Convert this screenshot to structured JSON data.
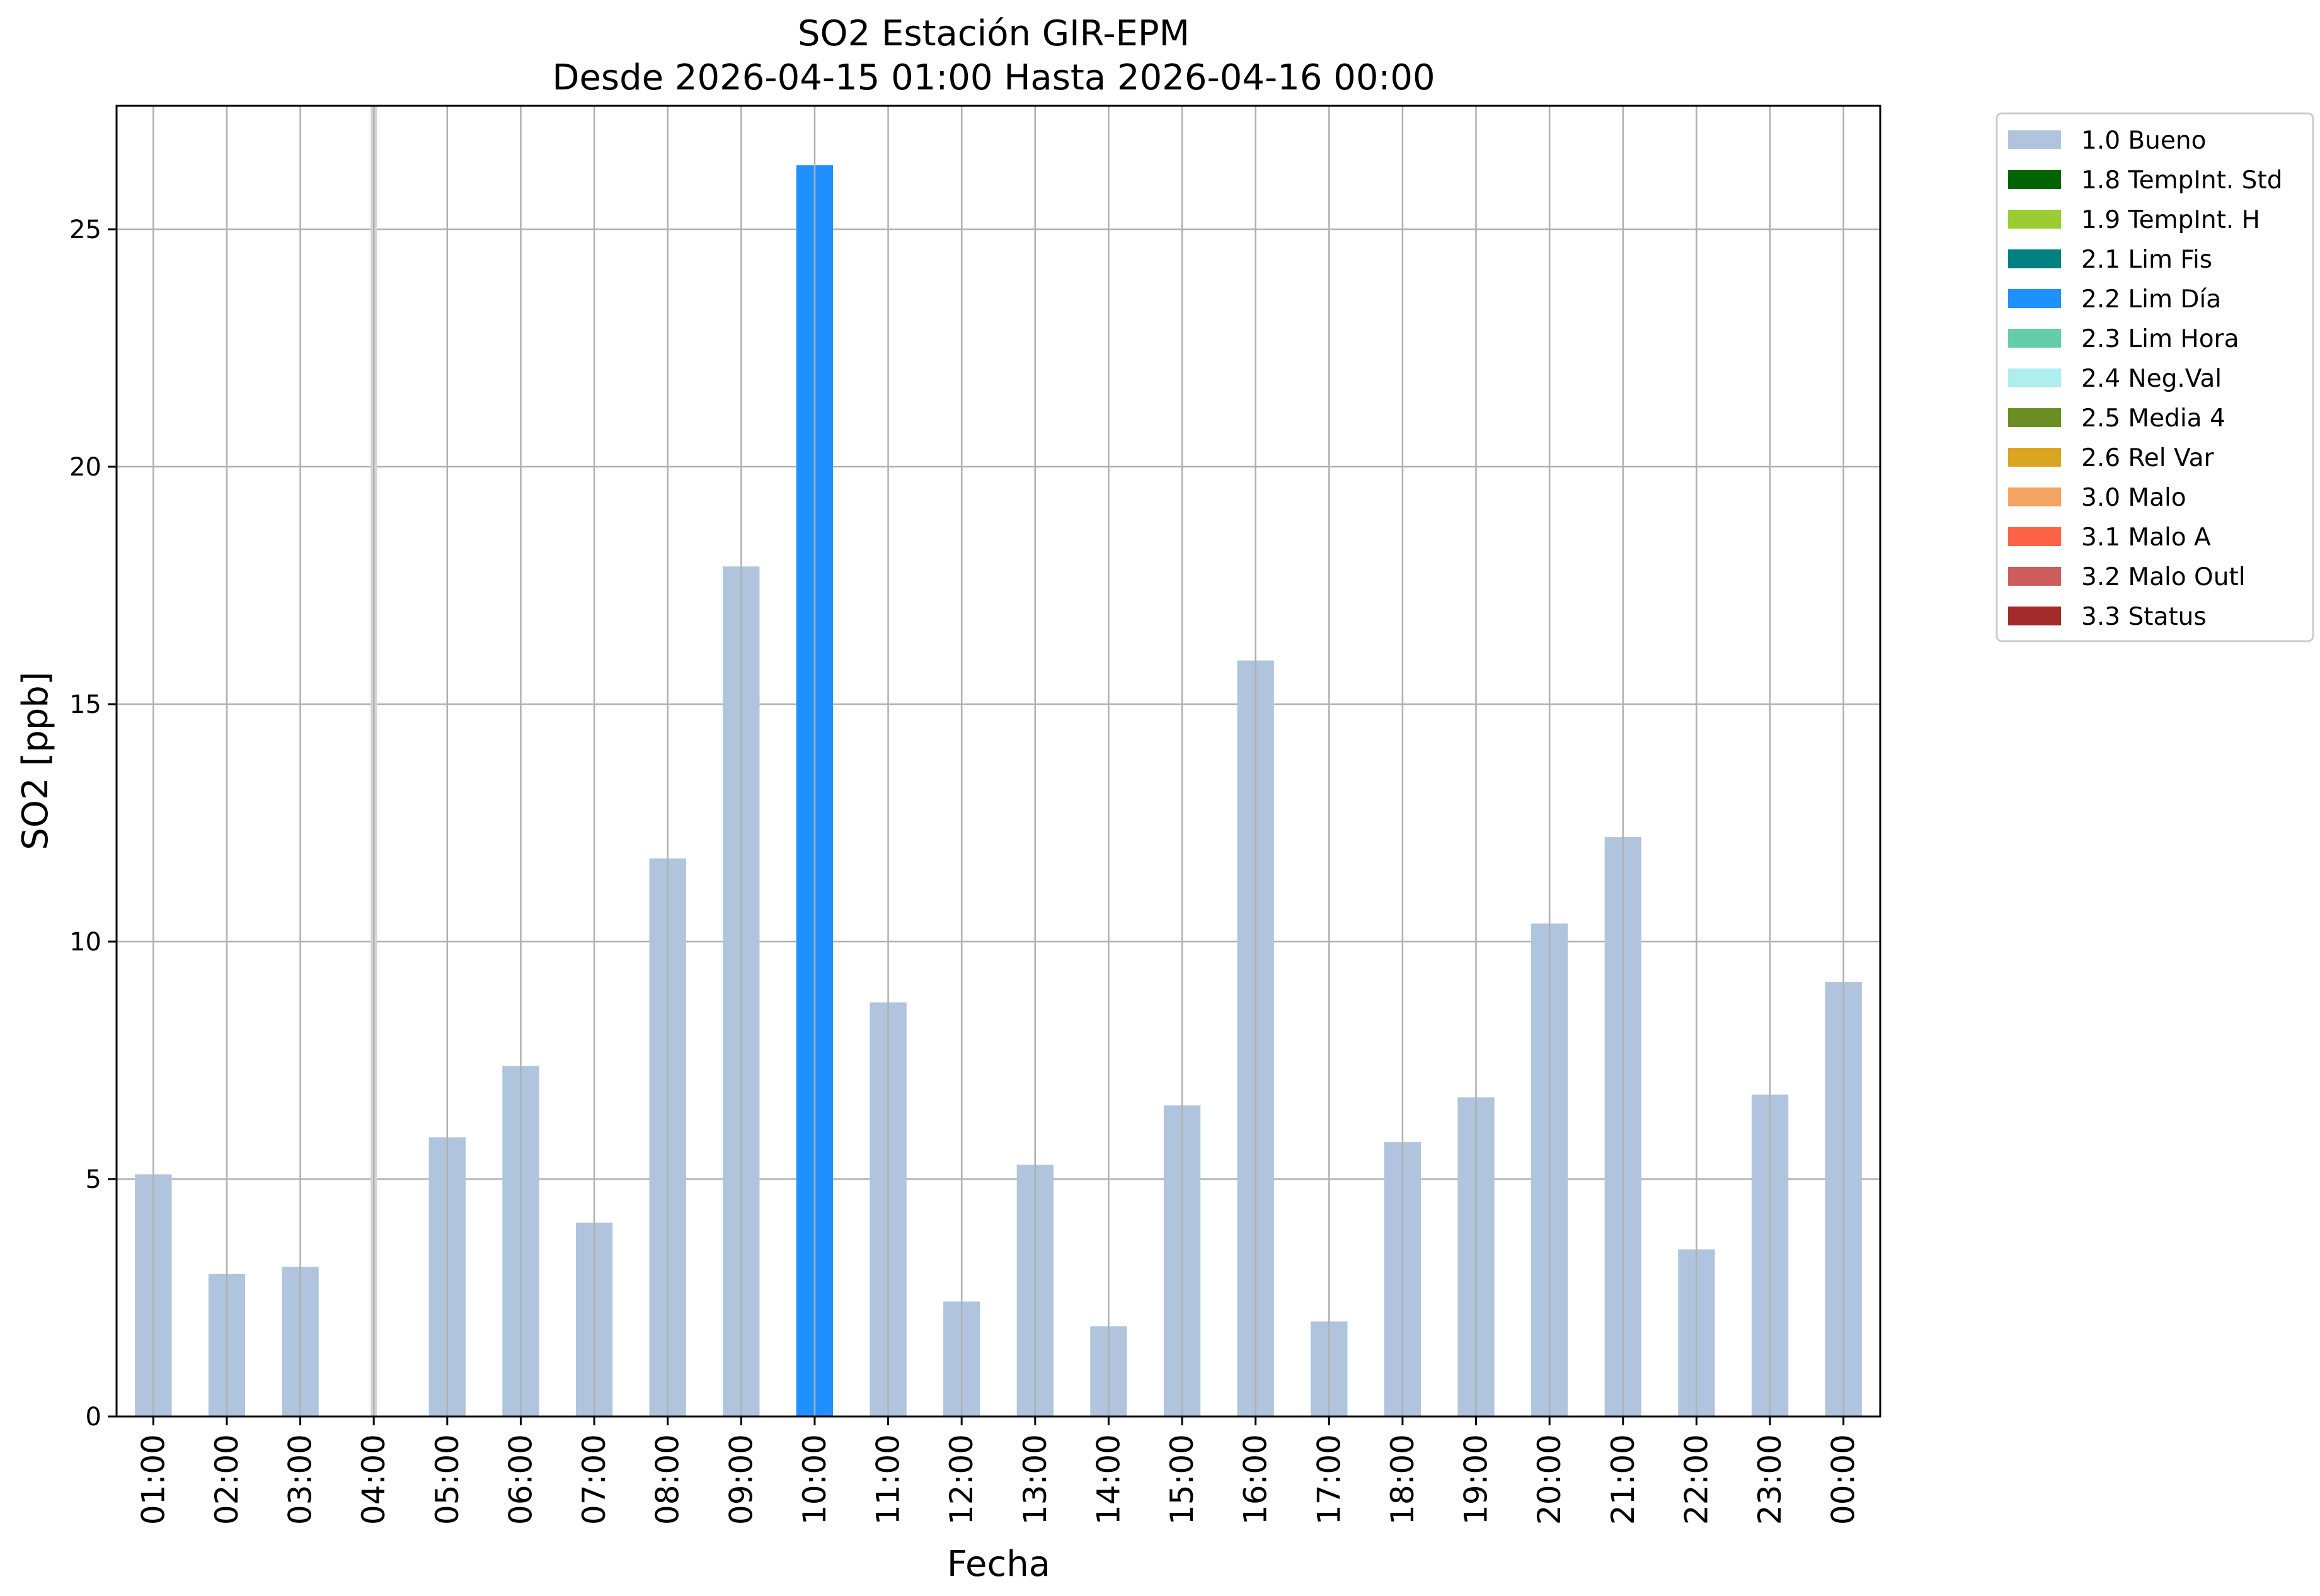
{
  "chart_data": {
    "type": "bar",
    "title": "SO2 Estación GIR-EPM",
    "subtitle": "Desde 2026-04-15 01:00 Hasta 2026-04-16 00:00",
    "xlabel": "Fecha",
    "ylabel": "SO2 [ppb]",
    "ylim": [
      0,
      27.6
    ],
    "yticks": [
      0,
      5,
      10,
      15,
      20,
      25
    ],
    "grid": true,
    "legend_placement": "outside-top-right",
    "categories": [
      "01:00",
      "02:00",
      "03:00",
      "04:00",
      "05:00",
      "06:00",
      "07:00",
      "08:00",
      "09:00",
      "10:00",
      "11:00",
      "12:00",
      "13:00",
      "14:00",
      "15:00",
      "16:00",
      "17:00",
      "18:00",
      "19:00",
      "20:00",
      "21:00",
      "22:00",
      "23:00",
      "00:00"
    ],
    "values": [
      5.1,
      3.0,
      3.15,
      null,
      5.88,
      7.38,
      4.08,
      11.75,
      17.9,
      26.35,
      8.72,
      2.42,
      5.3,
      1.9,
      6.55,
      15.92,
      2.0,
      5.78,
      6.72,
      10.38,
      12.2,
      3.52,
      6.78,
      9.15
    ],
    "quality": [
      "1.0 Bueno",
      "1.0 Bueno",
      "1.0 Bueno",
      "missing",
      "1.0 Bueno",
      "1.0 Bueno",
      "1.0 Bueno",
      "1.0 Bueno",
      "1.0 Bueno",
      "2.2 Lim Día",
      "1.0 Bueno",
      "1.0 Bueno",
      "1.0 Bueno",
      "1.0 Bueno",
      "1.0 Bueno",
      "1.0 Bueno",
      "1.0 Bueno",
      "1.0 Bueno",
      "1.0 Bueno",
      "1.0 Bueno",
      "1.0 Bueno",
      "1.0 Bueno",
      "1.0 Bueno",
      "1.0 Bueno"
    ],
    "missing_marker_color": "#d3d3d3",
    "legend": [
      {
        "label": "1.0 Bueno",
        "color": "#b0c4de"
      },
      {
        "label": "1.8 TempInt. Std",
        "color": "#006400"
      },
      {
        "label": "1.9 TempInt. H",
        "color": "#9acd32"
      },
      {
        "label": "2.1 Lim Fis",
        "color": "#008080"
      },
      {
        "label": "2.2 Lim Día",
        "color": "#1e90ff"
      },
      {
        "label": "2.3 Lim Hora",
        "color": "#66cdaa"
      },
      {
        "label": "2.4 Neg.Val",
        "color": "#afeeee"
      },
      {
        "label": "2.5 Media 4",
        "color": "#6b8e23"
      },
      {
        "label": "2.6 Rel Var",
        "color": "#daa520"
      },
      {
        "label": "3.0 Malo",
        "color": "#f4a460"
      },
      {
        "label": "3.1 Malo A",
        "color": "#ff6347"
      },
      {
        "label": "3.2 Malo Outl",
        "color": "#cd5c5c"
      },
      {
        "label": "3.3 Status",
        "color": "#a52a2a"
      }
    ]
  }
}
